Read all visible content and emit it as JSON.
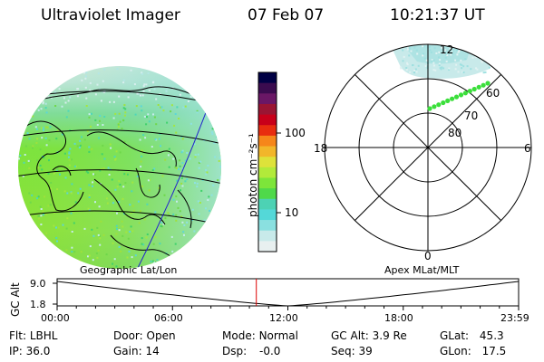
{
  "header": {
    "title": "Ultraviolet Imager",
    "date": "07 Feb 07",
    "time": "10:21:37 UT"
  },
  "colorbar": {
    "unit_label": "photon cm⁻²s⁻¹",
    "ticks": [
      "100",
      "10"
    ],
    "colors": [
      "#000044",
      "#3a0b4f",
      "#6a1766",
      "#9a1533",
      "#c8001a",
      "#e82d0f",
      "#f6861a",
      "#f2b62a",
      "#dee23a",
      "#b2ea3a",
      "#7de53a",
      "#4fd94a",
      "#4dd2b4",
      "#54d8d8",
      "#8ae0e0",
      "#c8eaea",
      "#e8f0f0"
    ]
  },
  "map_labels": {
    "left": "Geographic Lat/Lon",
    "right": "Apex  MLat/MLT"
  },
  "polar": {
    "mlt_labels": {
      "top": "12",
      "left": "18",
      "right": "6",
      "bottom": "0"
    },
    "lat_labels": [
      "60",
      "70",
      "80"
    ],
    "points_color": "#3bdf3b"
  },
  "altitude_plot": {
    "axis_title": "GC Alt",
    "y_ticks": [
      "9.0",
      "1.8"
    ],
    "x_ticks": [
      "00:00",
      "06:00",
      "12:00",
      "18:00",
      "23:59"
    ],
    "marker_hour": 10.36,
    "marker_color": "#dd0000"
  },
  "status": {
    "row1": [
      {
        "label": "Flt:",
        "value": "LBHL"
      },
      {
        "label": "Door:",
        "value": "Open"
      },
      {
        "label": "Mode:",
        "value": "Normal"
      },
      {
        "label": "GC Alt:",
        "value": "3.9 Re"
      },
      {
        "label": "GLat:",
        "value": "45.3"
      }
    ],
    "row2": [
      {
        "label": "IP:",
        "value": "36.0"
      },
      {
        "label": "Gain:",
        "value": "14"
      },
      {
        "label": "Dsp:",
        "value": "-0.0"
      },
      {
        "label": "Seq:",
        "value": "39"
      },
      {
        "label": "GLon:",
        "value": "17.5"
      }
    ]
  }
}
